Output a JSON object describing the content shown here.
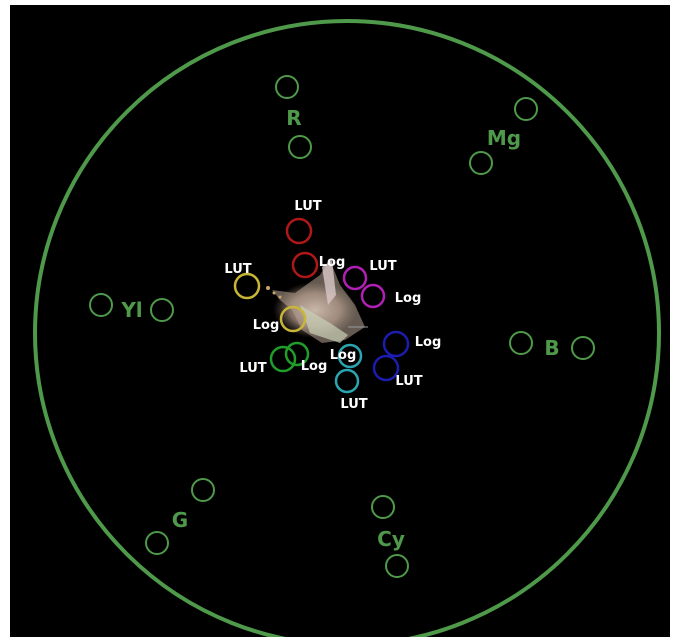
{
  "scope": {
    "type": "vectorscope",
    "graticule_color": "#4f9a4a",
    "background": "#000000"
  },
  "targets": {
    "red": {
      "label": "R"
    },
    "magenta": {
      "label": "Mg"
    },
    "blue": {
      "label": "B"
    },
    "cyan": {
      "label": "Cy"
    },
    "green": {
      "label": "G"
    },
    "yellow": {
      "label": "Yl"
    }
  },
  "markers": {
    "red_lut": {
      "label": "LUT",
      "color": "#b01818"
    },
    "red_log": {
      "label": "Log",
      "color": "#b01818"
    },
    "magenta_lut": {
      "label": "LUT",
      "color": "#b020b4"
    },
    "magenta_log": {
      "label": "Log",
      "color": "#b020b4"
    },
    "yellow_lut": {
      "label": "LUT",
      "color": "#c9b637"
    },
    "yellow_log": {
      "label": "Log",
      "color": "#c9b637"
    },
    "green_lut": {
      "label": "LUT",
      "color": "#1f9e2a"
    },
    "green_log": {
      "label": "Log",
      "color": "#1f9e2a"
    },
    "cyan_lut": {
      "label": "LUT",
      "color": "#2aa6b0"
    },
    "cyan_log": {
      "label": "Log",
      "color": "#2aa6b0"
    },
    "blue_lut": {
      "label": "LUT",
      "color": "#1c1cb0"
    },
    "blue_log": {
      "label": "Log",
      "color": "#1c1cb0"
    }
  },
  "label_color": "#ffffff"
}
